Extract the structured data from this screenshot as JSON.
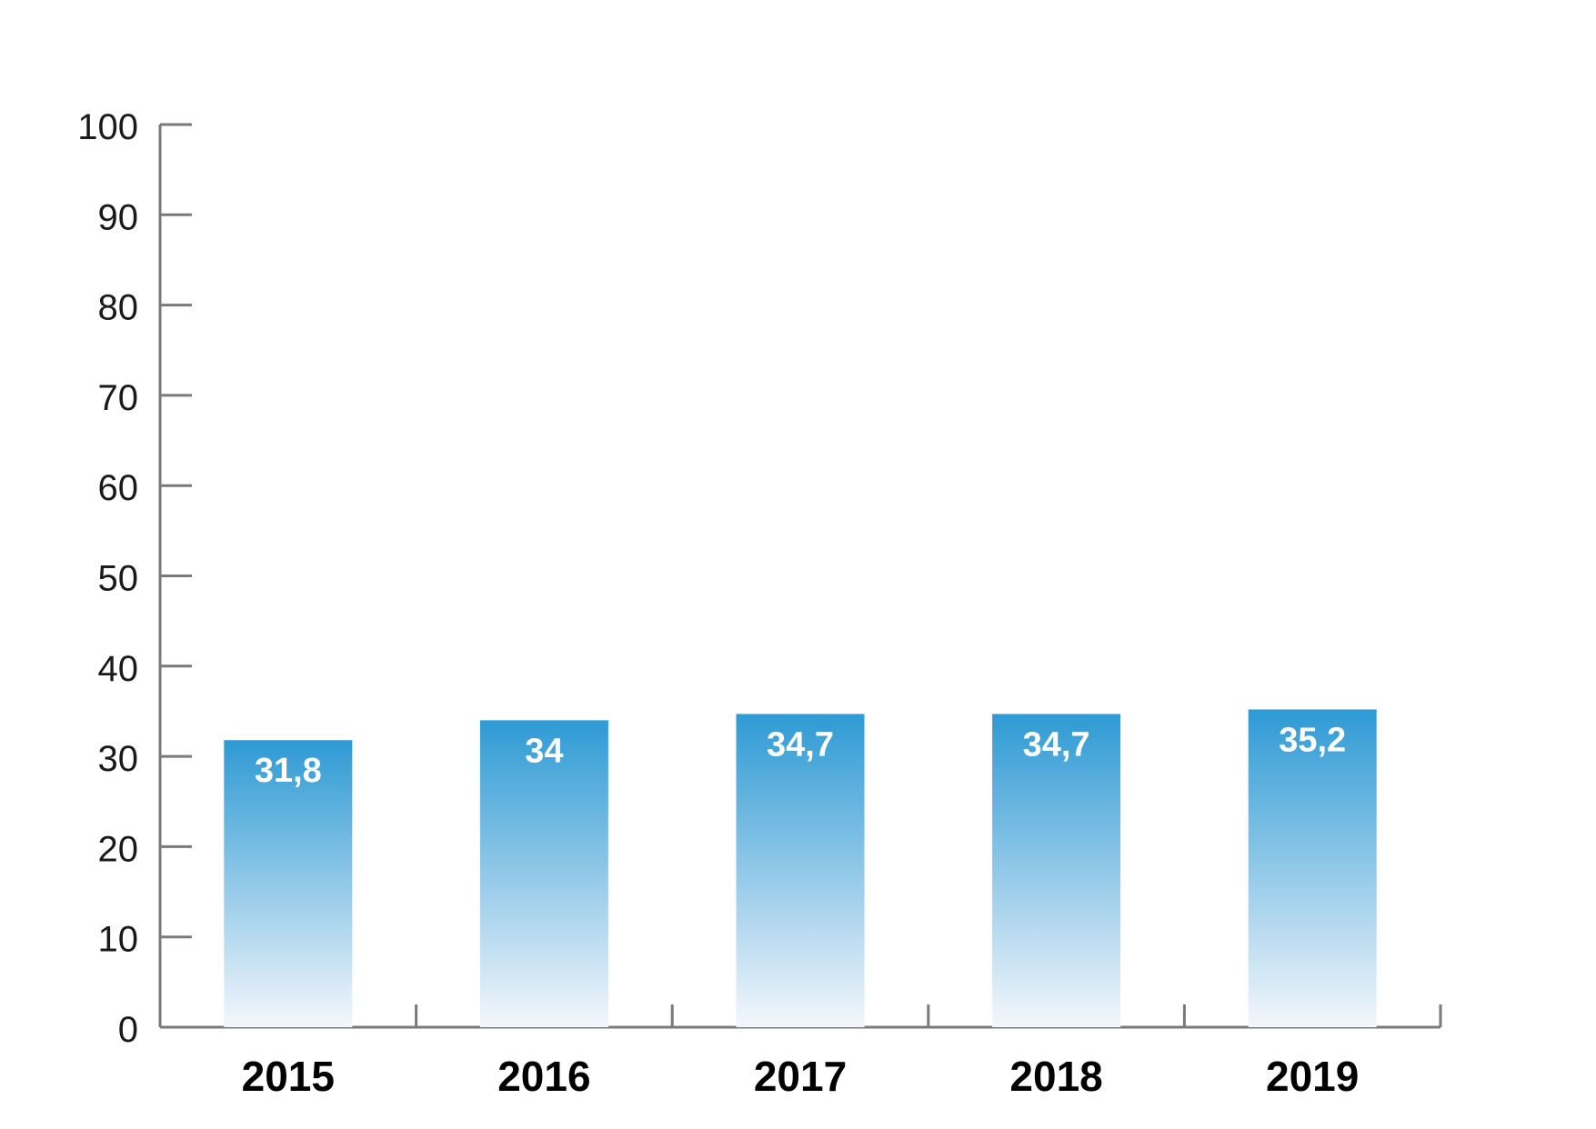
{
  "chart_data": {
    "type": "bar",
    "categories": [
      "2015",
      "2016",
      "2017",
      "2018",
      "2019"
    ],
    "values": [
      31.8,
      34,
      34.7,
      34.7,
      35.2
    ],
    "value_labels": [
      "31,8",
      "34",
      "34,7",
      "34,7",
      "35,2"
    ],
    "title": "",
    "xlabel": "",
    "ylabel": "",
    "ylim": [
      0,
      100
    ],
    "yticks": [
      "0",
      "10",
      "20",
      "30",
      "40",
      "50",
      "60",
      "70",
      "80",
      "90",
      "100"
    ],
    "grid": false,
    "legend": "none",
    "bar_color_top": "#2e9ad4",
    "bar_color_bottom": "#f4f7fc",
    "axis_color": "#7a7a7a"
  }
}
